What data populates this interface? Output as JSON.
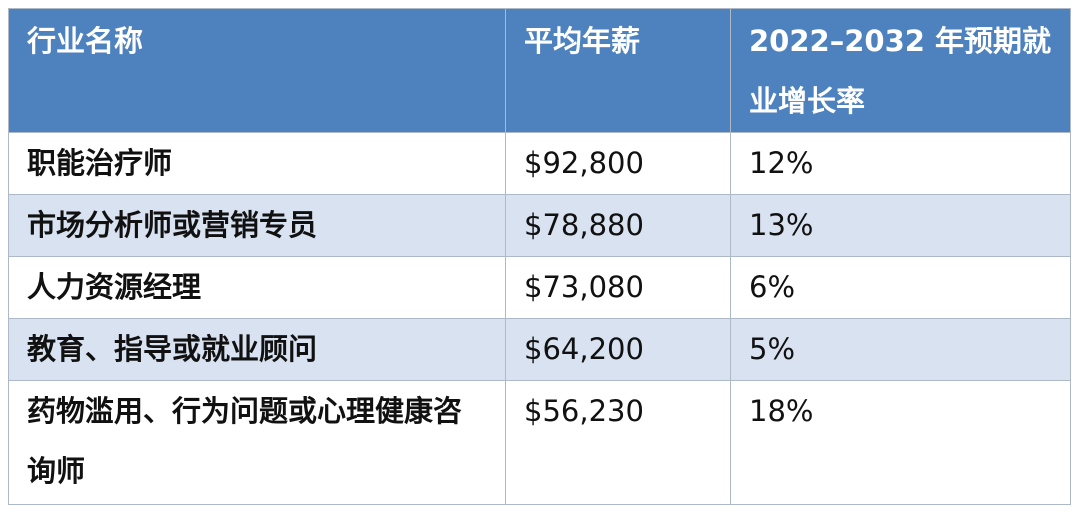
{
  "table": {
    "headers": [
      "行业名称",
      "平均年薪",
      "2022–2032 年预期就业增长率"
    ],
    "rows": [
      {
        "name": "职能治疗师",
        "salary": "$92,800",
        "growth": "12%"
      },
      {
        "name": "市场分析师或营销专员",
        "salary": "$78,880",
        "growth": "13%"
      },
      {
        "name": "人力资源经理",
        "salary": "$73,080",
        "growth": "6%"
      },
      {
        "name": "教育、指导或就业顾问",
        "salary": "$64,200",
        "growth": "5%"
      },
      {
        "name": "药物滥用、行为问题或心理健康咨询师",
        "salary": "$56,230",
        "growth": "18%"
      }
    ]
  },
  "colors": {
    "header_bg": "#4d82bf",
    "header_text": "#ffffff",
    "alt_row_bg": "#d8e2f0",
    "border": "#aeb9c8"
  }
}
